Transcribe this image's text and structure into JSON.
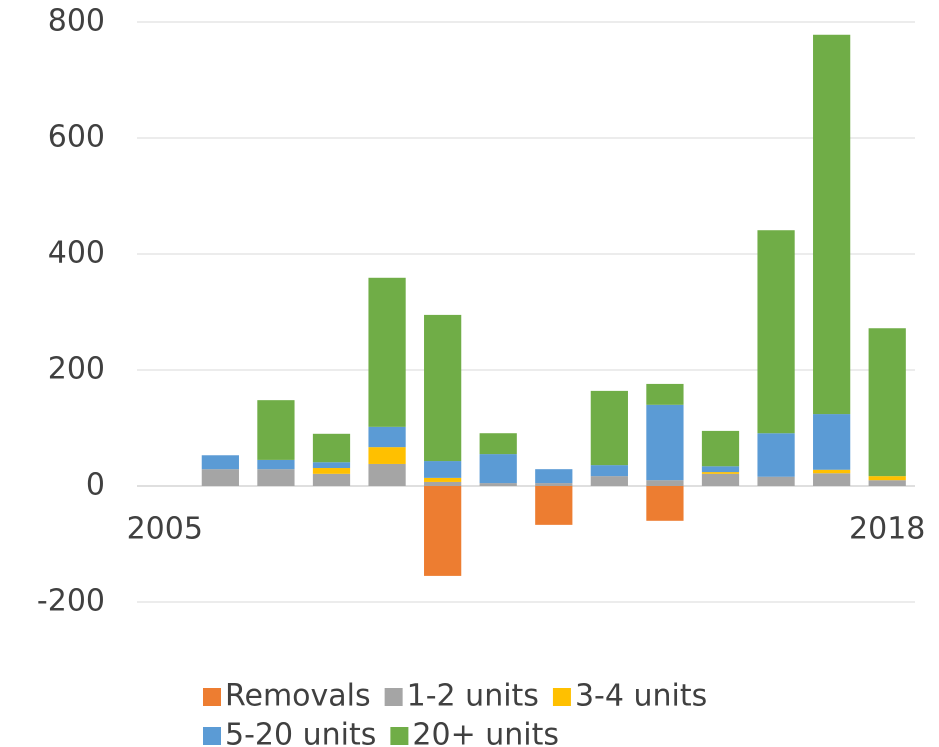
{
  "chart_data": {
    "type": "bar",
    "stacked": true,
    "categories": [
      "2005",
      null,
      null,
      null,
      null,
      null,
      null,
      null,
      null,
      null,
      null,
      null,
      null,
      "2018"
    ],
    "series": [
      {
        "name": "Removals",
        "color": "#ed7d31",
        "values": [
          0,
          0,
          0,
          0,
          0,
          -155,
          0,
          -67,
          0,
          -60,
          0,
          0,
          0,
          0
        ]
      },
      {
        "name": "1-2 units",
        "color": "#a5a5a5",
        "values": [
          0,
          29,
          29,
          21,
          38,
          7,
          5,
          5,
          17,
          10,
          21,
          16,
          22,
          10
        ]
      },
      {
        "name": "3-4 units",
        "color": "#ffc000",
        "values": [
          0,
          0,
          0,
          10,
          29,
          7,
          0,
          0,
          0,
          0,
          3,
          0,
          6,
          7
        ]
      },
      {
        "name": "5-20 units",
        "color": "#5b9bd5",
        "values": [
          0,
          24,
          16,
          10,
          35,
          29,
          50,
          24,
          19,
          130,
          10,
          75,
          96,
          0
        ]
      },
      {
        "name": "20+ units",
        "color": "#70ad47",
        "values": [
          0,
          0,
          103,
          49,
          257,
          252,
          36,
          0,
          128,
          36,
          61,
          350,
          654,
          255
        ]
      }
    ],
    "ylim": [
      -250,
      800
    ],
    "yticks": [
      -200,
      0,
      200,
      400,
      600,
      800
    ],
    "grid": true,
    "legend": "bottom"
  }
}
